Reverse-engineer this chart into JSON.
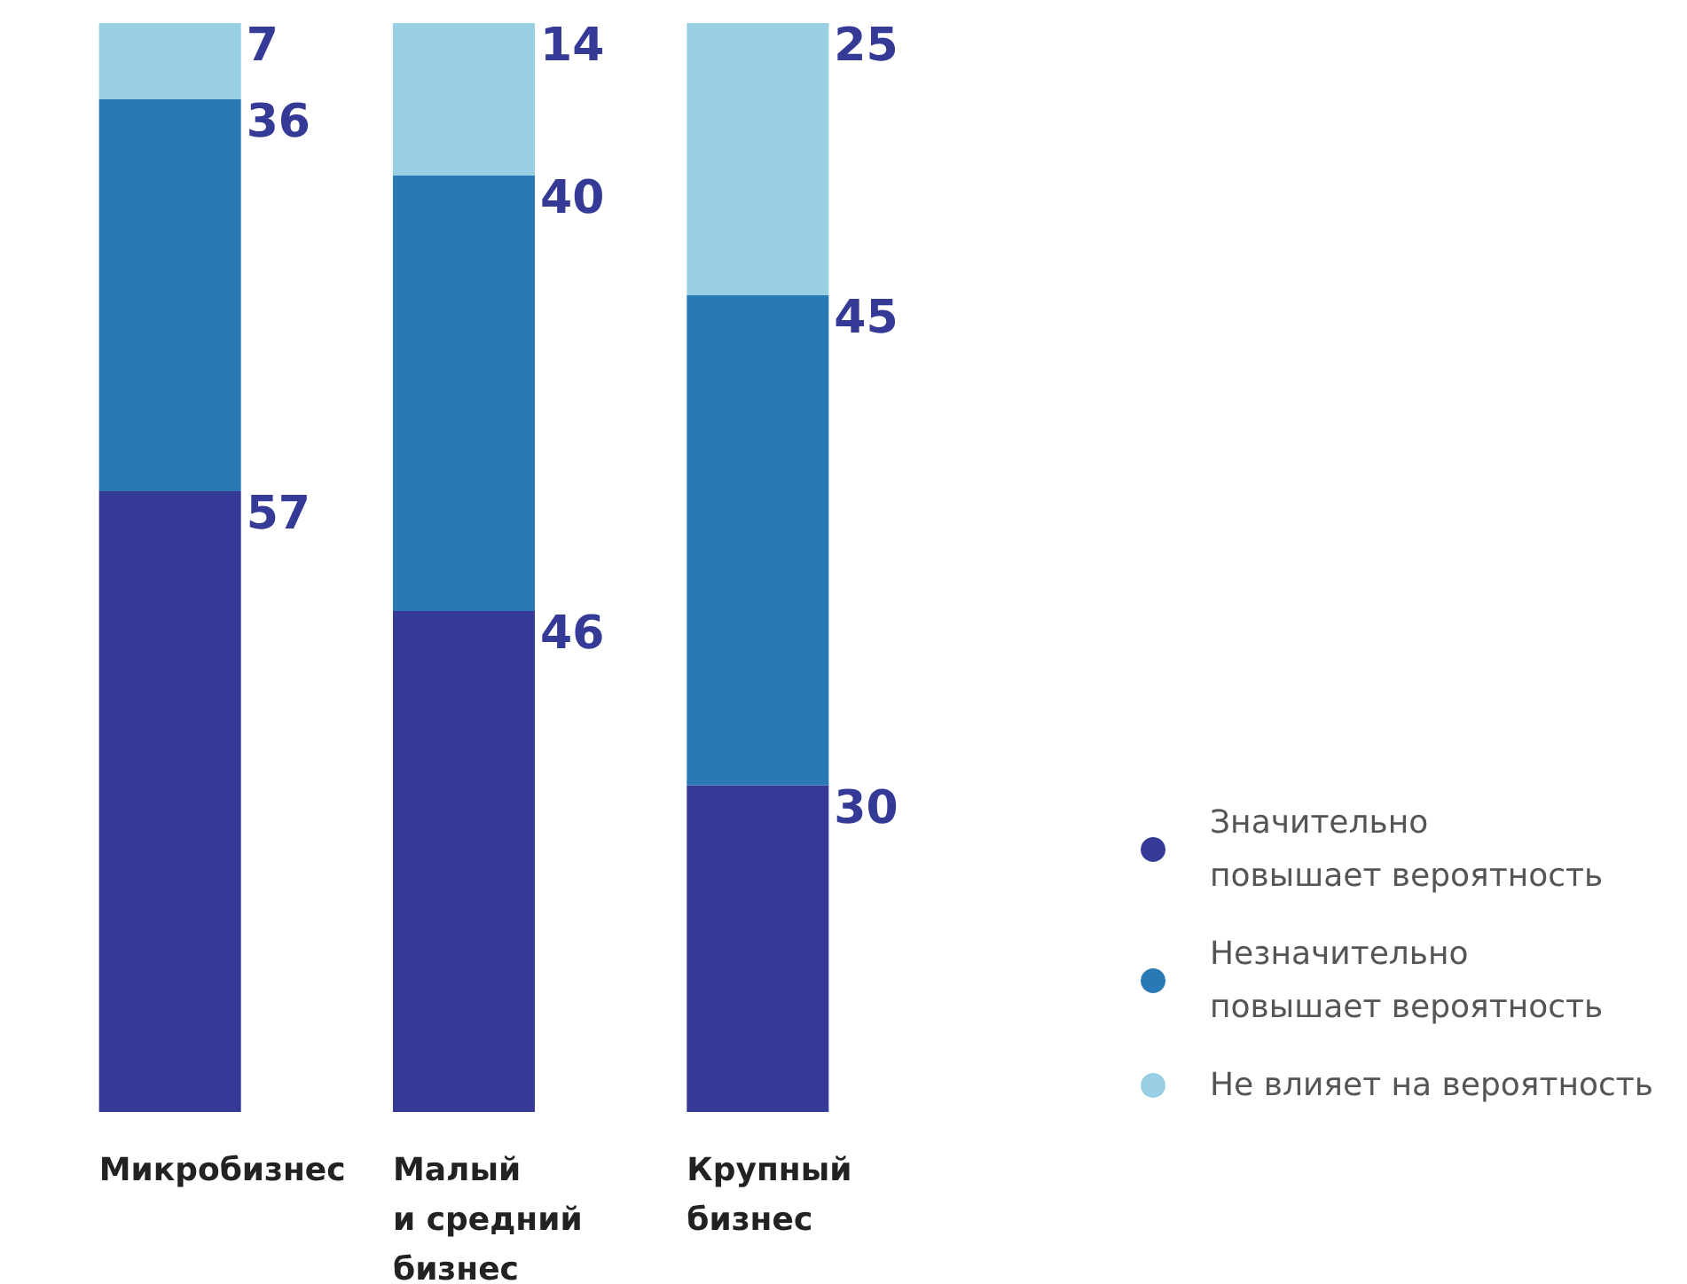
{
  "chart_data": {
    "type": "bar",
    "stacked": true,
    "data_labels": true,
    "legend": "bottom right",
    "categories": [
      "Микробизнес",
      "Малый\nи средний\nбизнес",
      "Крупный\nбизнес"
    ],
    "series": [
      {
        "name": "Значительно\nповышает вероятность",
        "color": "#343a96",
        "values": [
          57,
          46,
          30
        ]
      },
      {
        "name": "Незначительно\nповышает вероятность",
        "color": "#2a78b4",
        "values": [
          36,
          40,
          45
        ]
      },
      {
        "name": "Не влияет на вероятность",
        "color": "#98cfe3",
        "values": [
          7,
          14,
          25
        ]
      }
    ]
  }
}
